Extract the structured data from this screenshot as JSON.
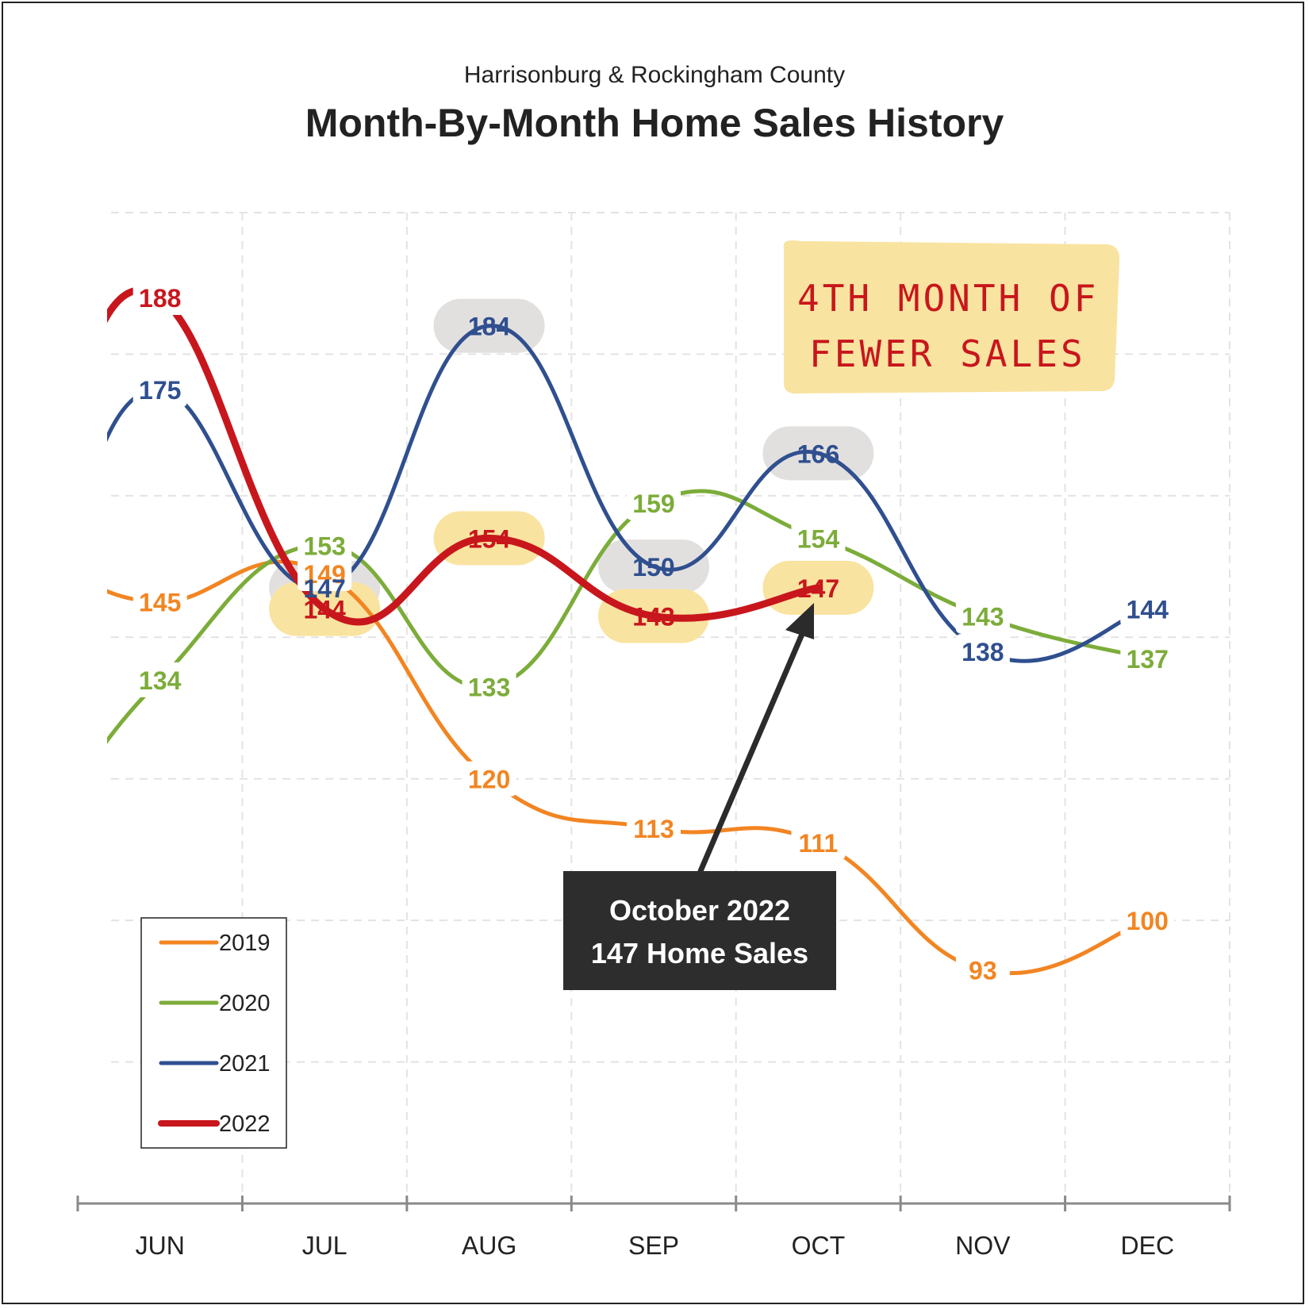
{
  "chart_data": {
    "type": "line",
    "subtitle": "Harrisonburg & Rockingham County",
    "title": "Month-By-Month Home Sales History",
    "categories": [
      "JUN",
      "JUL",
      "AUG",
      "SEP",
      "OCT",
      "NOV",
      "DEC"
    ],
    "ylim": [
      60,
      200
    ],
    "grid": true,
    "legend_position": "bottom-left",
    "series": [
      {
        "name": "2019",
        "color": "#f28522",
        "values": [
          145,
          149,
          120,
          113,
          111,
          93,
          100
        ]
      },
      {
        "name": "2020",
        "color": "#7cac3a",
        "values": [
          134,
          153,
          133,
          159,
          154,
          143,
          137
        ]
      },
      {
        "name": "2021",
        "color": "#2f4f8f",
        "values": [
          175,
          147,
          184,
          150,
          166,
          138,
          144
        ]
      },
      {
        "name": "2022",
        "color": "#c8161d",
        "values": [
          188,
          144,
          154,
          143,
          147,
          null,
          null
        ]
      }
    ],
    "annotations": {
      "note_line1": "4TH MONTH OF",
      "note_line2": "FEWER SALES",
      "callout_line1": "October 2022",
      "callout_line2": "147 Home Sales"
    }
  }
}
